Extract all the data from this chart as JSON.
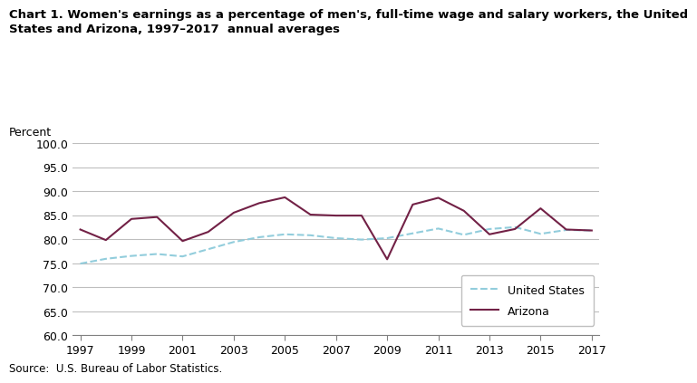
{
  "title_line1": "Chart 1. Women's earnings as a percentage of men's, full-time wage and salary workers, the United",
  "title_line2": "States and Arizona, 1997–2017  annual averages",
  "ylabel": "Percent",
  "source": "Source:  U.S. Bureau of Labor Statistics.",
  "years": [
    1997,
    1998,
    1999,
    2000,
    2001,
    2002,
    2003,
    2004,
    2005,
    2006,
    2007,
    2008,
    2009,
    2010,
    2011,
    2012,
    2013,
    2014,
    2015,
    2016,
    2017
  ],
  "us_data": [
    74.9,
    75.9,
    76.5,
    76.9,
    76.4,
    77.9,
    79.4,
    80.4,
    81.0,
    80.8,
    80.2,
    79.9,
    80.2,
    81.2,
    82.2,
    80.9,
    82.1,
    82.5,
    81.1,
    81.9,
    81.8
  ],
  "az_data": [
    82.0,
    79.8,
    84.2,
    84.6,
    79.6,
    81.5,
    85.5,
    87.5,
    88.7,
    85.1,
    84.9,
    84.9,
    75.8,
    87.2,
    88.6,
    85.9,
    81.0,
    82.1,
    86.4,
    82.0,
    81.8
  ],
  "us_color": "#92CDDC",
  "az_color": "#722146",
  "ylim": [
    60.0,
    100.0
  ],
  "yticks": [
    60.0,
    65.0,
    70.0,
    75.0,
    80.0,
    85.0,
    90.0,
    95.0,
    100.0
  ],
  "xticks": [
    1997,
    1999,
    2001,
    2003,
    2005,
    2007,
    2009,
    2011,
    2013,
    2015,
    2017
  ],
  "background_color": "#FFFFFF",
  "grid_color": "#BEBEBE",
  "title_fontsize": 9.5,
  "tick_fontsize": 9,
  "legend_fontsize": 9,
  "source_fontsize": 8.5
}
